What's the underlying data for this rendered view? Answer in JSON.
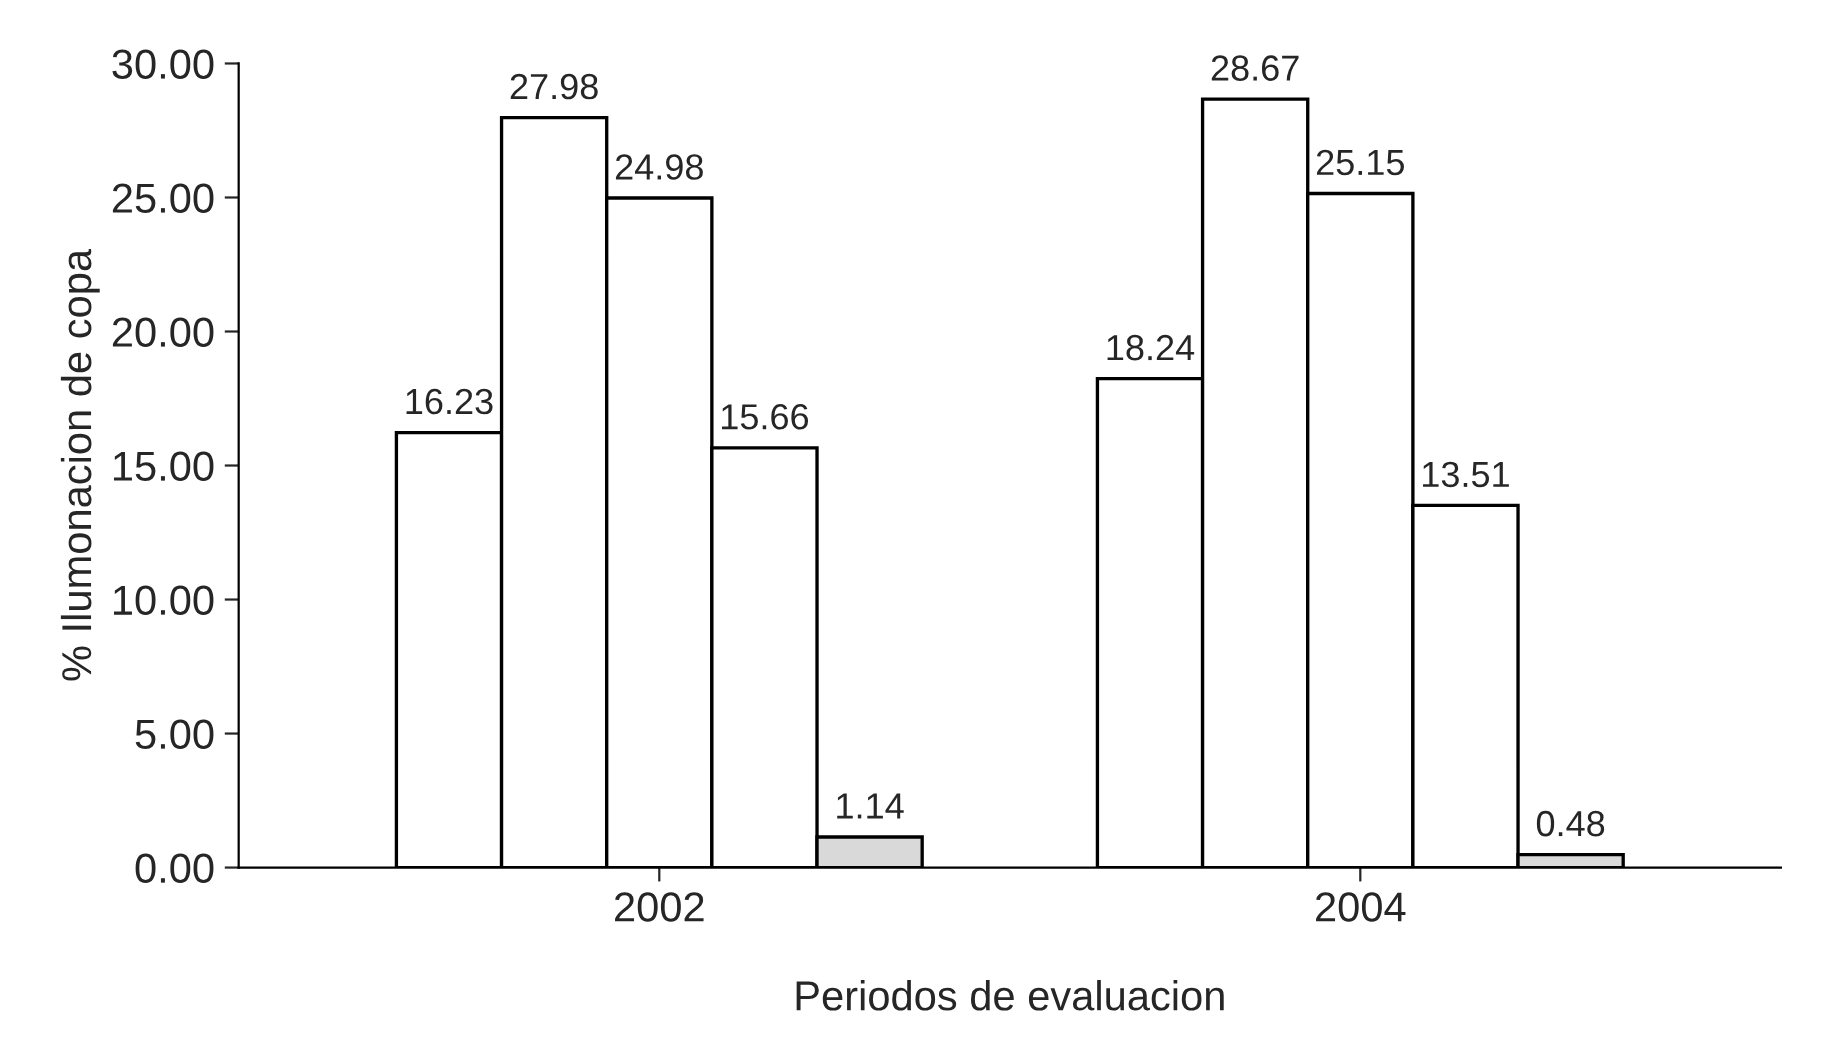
{
  "chart_data": {
    "type": "bar",
    "xlabel": "Periodos de evaluacion",
    "ylabel": "% Ilumonacion de copa",
    "categories": [
      "2002",
      "2004"
    ],
    "series": [
      {
        "color": "#ffffff",
        "values": [
          16.23,
          18.24
        ]
      },
      {
        "color": "#ffffff",
        "values": [
          27.98,
          28.67
        ]
      },
      {
        "color": "#ffffff",
        "values": [
          24.98,
          25.15
        ]
      },
      {
        "color": "#ffffff",
        "values": [
          15.66,
          13.51
        ]
      },
      {
        "color": "#d9d9d9",
        "values": [
          1.14,
          0.48
        ]
      }
    ],
    "ylim": [
      0,
      30
    ],
    "yticks": [
      {
        "value": 0,
        "label": "0.00"
      },
      {
        "value": 5,
        "label": "5.00"
      },
      {
        "value": 10,
        "label": "10.00"
      },
      {
        "value": 15,
        "label": "15.00"
      },
      {
        "value": 20,
        "label": "20.00"
      },
      {
        "value": 25,
        "label": "25.00"
      },
      {
        "value": 30,
        "label": "30.00"
      }
    ],
    "data_labels": true,
    "legend": false,
    "grid": false
  }
}
